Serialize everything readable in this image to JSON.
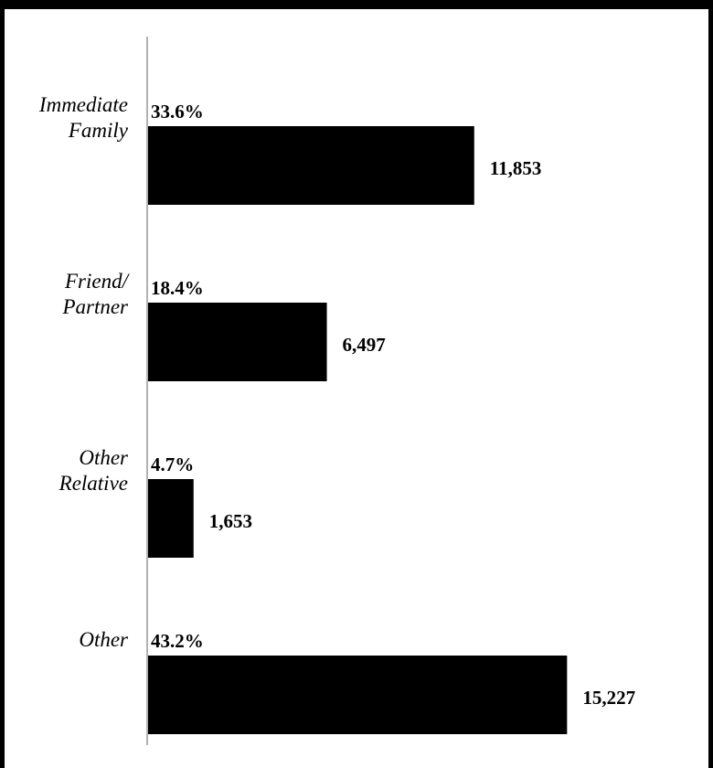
{
  "chart_data": {
    "type": "bar",
    "orientation": "horizontal",
    "categories": [
      [
        "Immediate",
        "Family"
      ],
      [
        "Friend/",
        "Partner"
      ],
      [
        "Other",
        "Relative"
      ],
      [
        "Other"
      ]
    ],
    "values": [
      11853,
      6497,
      1653,
      15227
    ],
    "value_labels": [
      "11,853",
      "6,497",
      "1,653",
      "15,227"
    ],
    "percent_values": [
      33.6,
      18.4,
      4.7,
      43.2
    ],
    "percent_labels": [
      "33.6%",
      "18.4%",
      "4.7%",
      "43.2%"
    ],
    "color": "#000000",
    "xlim": [
      0,
      20000
    ]
  }
}
